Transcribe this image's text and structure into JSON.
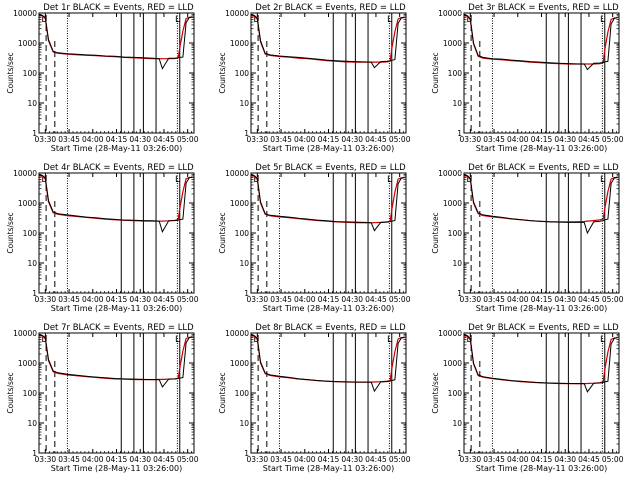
{
  "chart_data": {
    "type": "line",
    "layout": "3x3 grid of panels",
    "xlabel": "Start Time (28-May-11 03:26:00)",
    "ylabel": "Counts/sec",
    "x_tick_labels": [
      "03:30",
      "03:45",
      "04:00",
      "04:15",
      "04:30",
      "04:45",
      "05:00"
    ],
    "x_tick_values_min": [
      4,
      19,
      34,
      49,
      64,
      79,
      94
    ],
    "xlim_min": [
      0,
      98
    ],
    "ylim": [
      1,
      10000
    ],
    "yscale": "log",
    "y_tick_labels": [
      "1",
      "10",
      "100",
      "1000",
      "10000"
    ],
    "series_colors": {
      "events": "#000000",
      "lld": "#cc0000"
    },
    "panels": [
      {
        "title": "Det 1r BLACK = Events, RED = LLD",
        "x": [
          0,
          2,
          4,
          6,
          9,
          12,
          18,
          24,
          30,
          36,
          42,
          48,
          54,
          60,
          66,
          72,
          76,
          78,
          82,
          86,
          88,
          89,
          91,
          93,
          95,
          97
        ],
        "events": [
          8500,
          8400,
          7000,
          1300,
          520,
          470,
          440,
          420,
          400,
          390,
          370,
          360,
          340,
          330,
          320,
          310,
          300,
          140,
          310,
          310,
          320,
          330,
          340,
          4800,
          7000,
          7400
        ],
        "lld": [
          8200,
          8100,
          6500,
          1200,
          500,
          455,
          425,
          405,
          390,
          380,
          360,
          350,
          330,
          320,
          310,
          300,
          300,
          300,
          300,
          305,
          320,
          700,
          2500,
          6500,
          7200,
          7300
        ]
      },
      {
        "title": "Det 2r BLACK = Events, RED = LLD",
        "x": [
          0,
          2,
          4,
          6,
          9,
          12,
          18,
          24,
          30,
          36,
          42,
          48,
          54,
          60,
          66,
          72,
          76,
          78,
          82,
          86,
          88,
          89,
          91,
          93,
          95,
          97
        ],
        "events": [
          8500,
          8300,
          6800,
          1200,
          450,
          400,
          370,
          350,
          330,
          310,
          290,
          270,
          255,
          245,
          240,
          235,
          230,
          150,
          240,
          245,
          255,
          265,
          280,
          4500,
          6800,
          7200
        ],
        "lld": [
          8000,
          7900,
          6200,
          1100,
          430,
          385,
          355,
          335,
          315,
          300,
          280,
          260,
          245,
          235,
          230,
          230,
          230,
          230,
          230,
          235,
          250,
          650,
          2400,
          6300,
          7000,
          7100
        ]
      },
      {
        "title": "Det 3r BLACK = Events, RED = LLD",
        "x": [
          0,
          2,
          4,
          6,
          9,
          12,
          18,
          24,
          30,
          36,
          42,
          48,
          54,
          60,
          66,
          72,
          76,
          78,
          82,
          86,
          88,
          89,
          91,
          93,
          95,
          97
        ],
        "events": [
          8500,
          8200,
          6500,
          1000,
          380,
          330,
          300,
          290,
          270,
          255,
          240,
          230,
          220,
          210,
          205,
          200,
          200,
          130,
          210,
          215,
          225,
          235,
          245,
          4300,
          6600,
          7000
        ],
        "lld": [
          8100,
          7900,
          6000,
          950,
          360,
          315,
          290,
          275,
          260,
          245,
          230,
          220,
          210,
          205,
          200,
          200,
          200,
          200,
          200,
          205,
          220,
          600,
          2300,
          6100,
          6800,
          6900
        ]
      },
      {
        "title": "Det 4r BLACK = Events, RED = LLD",
        "x": [
          0,
          2,
          4,
          6,
          9,
          12,
          18,
          24,
          30,
          36,
          42,
          48,
          54,
          60,
          66,
          72,
          76,
          78,
          82,
          86,
          88,
          89,
          91,
          93,
          95,
          97
        ],
        "events": [
          8500,
          8300,
          6900,
          1200,
          500,
          440,
          400,
          370,
          340,
          320,
          300,
          285,
          270,
          265,
          260,
          255,
          250,
          110,
          255,
          260,
          270,
          280,
          290,
          4600,
          6900,
          7300
        ],
        "lld": [
          8000,
          7900,
          6300,
          1100,
          470,
          420,
          380,
          355,
          330,
          310,
          290,
          275,
          265,
          258,
          252,
          248,
          248,
          250,
          255,
          265,
          280,
          650,
          2400,
          6400,
          7100,
          7200
        ]
      },
      {
        "title": "Det 5r BLACK = Events, RED = LLD",
        "x": [
          0,
          2,
          4,
          6,
          9,
          12,
          18,
          24,
          30,
          36,
          42,
          48,
          54,
          60,
          66,
          72,
          76,
          78,
          82,
          86,
          88,
          89,
          91,
          93,
          95,
          97
        ],
        "events": [
          8500,
          8200,
          6700,
          1100,
          440,
          390,
          360,
          340,
          310,
          290,
          270,
          255,
          240,
          235,
          230,
          225,
          220,
          120,
          225,
          230,
          240,
          250,
          260,
          4400,
          6700,
          7100
        ],
        "lld": [
          8000,
          7800,
          6100,
          1000,
          420,
          375,
          345,
          325,
          300,
          280,
          262,
          248,
          235,
          228,
          222,
          218,
          218,
          220,
          225,
          235,
          250,
          600,
          2300,
          6200,
          6900,
          7000
        ]
      },
      {
        "title": "Det 6r BLACK = Events, RED = LLD",
        "x": [
          0,
          2,
          4,
          6,
          9,
          12,
          18,
          24,
          30,
          36,
          42,
          48,
          54,
          60,
          66,
          72,
          76,
          78,
          82,
          86,
          88,
          89,
          91,
          93,
          95,
          97
        ],
        "events": [
          8500,
          8200,
          6600,
          1100,
          470,
          400,
          360,
          330,
          300,
          280,
          260,
          245,
          235,
          230,
          225,
          225,
          225,
          100,
          235,
          245,
          260,
          275,
          290,
          4500,
          6800,
          7200
        ],
        "lld": [
          8000,
          7800,
          6100,
          1000,
          440,
          380,
          345,
          320,
          295,
          275,
          258,
          245,
          238,
          235,
          235,
          238,
          242,
          250,
          260,
          275,
          290,
          650,
          2400,
          6300,
          7000,
          7100
        ]
      },
      {
        "title": "Det 7r BLACK = Events, RED = LLD",
        "x": [
          0,
          2,
          4,
          6,
          9,
          12,
          18,
          24,
          30,
          36,
          42,
          48,
          54,
          60,
          66,
          72,
          76,
          78,
          82,
          86,
          88,
          89,
          91,
          93,
          95,
          97
        ],
        "events": [
          8500,
          8300,
          7000,
          1300,
          540,
          470,
          420,
          390,
          360,
          340,
          320,
          305,
          295,
          290,
          285,
          280,
          280,
          160,
          290,
          295,
          305,
          315,
          325,
          4700,
          7000,
          7400
        ],
        "lld": [
          8100,
          8000,
          6400,
          1200,
          510,
          450,
          400,
          375,
          350,
          330,
          310,
          295,
          288,
          282,
          280,
          280,
          282,
          285,
          290,
          298,
          310,
          680,
          2500,
          6500,
          7200,
          7300
        ]
      },
      {
        "title": "Det 8r BLACK = Events, RED = LLD",
        "x": [
          0,
          2,
          4,
          6,
          9,
          12,
          18,
          24,
          30,
          36,
          42,
          48,
          54,
          60,
          66,
          72,
          76,
          78,
          82,
          86,
          88,
          89,
          91,
          93,
          95,
          97
        ],
        "events": [
          8500,
          8200,
          6700,
          1100,
          460,
          400,
          360,
          330,
          300,
          280,
          262,
          250,
          240,
          235,
          232,
          230,
          230,
          115,
          235,
          240,
          250,
          262,
          275,
          4500,
          6800,
          7200
        ],
        "lld": [
          8000,
          7800,
          6100,
          1000,
          440,
          385,
          345,
          320,
          292,
          275,
          258,
          246,
          238,
          233,
          230,
          229,
          230,
          232,
          238,
          248,
          262,
          640,
          2400,
          6300,
          7000,
          7100
        ]
      },
      {
        "title": "Det 9r BLACK = Events, RED = LLD",
        "x": [
          0,
          2,
          4,
          6,
          9,
          12,
          18,
          24,
          30,
          36,
          42,
          48,
          54,
          60,
          66,
          72,
          76,
          78,
          82,
          86,
          88,
          89,
          91,
          93,
          95,
          97
        ],
        "events": [
          8500,
          8200,
          6600,
          1000,
          400,
          350,
          310,
          285,
          260,
          245,
          232,
          222,
          215,
          210,
          208,
          206,
          205,
          110,
          210,
          215,
          225,
          235,
          245,
          4300,
          6600,
          7000
        ],
        "lld": [
          8000,
          7800,
          6000,
          950,
          380,
          335,
          300,
          275,
          255,
          240,
          228,
          218,
          212,
          208,
          206,
          205,
          206,
          208,
          212,
          220,
          232,
          600,
          2300,
          6100,
          6800,
          6900
        ]
      }
    ]
  },
  "annotations": {
    "dashed_lines_min": [
      4.5,
      10
    ],
    "dotted_lines_min": [
      18,
      87.5
    ],
    "solid_lines_min": [
      52,
      60,
      66,
      74,
      89
    ],
    "bracket_marks": [
      "L",
      "L"
    ]
  }
}
